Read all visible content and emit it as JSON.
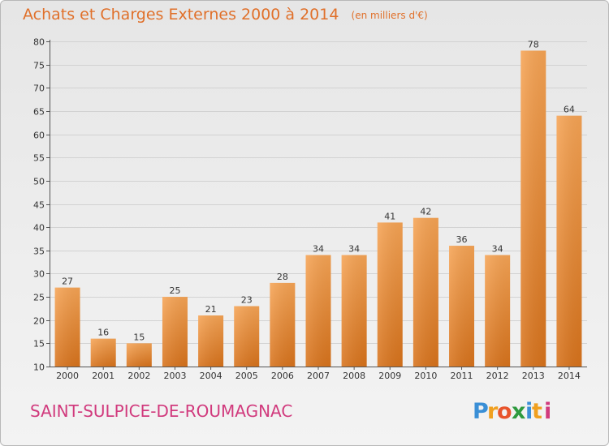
{
  "chart_title": "Achats et Charges Externes 2000 à 2014",
  "chart_unit": "(en milliers d'€)",
  "commune": "SAINT-SULPICE-DE-ROUMAGNAC",
  "logo_text": "Proxiti",
  "colors": {
    "title": "#e0702a",
    "commune": "#d13a7d",
    "bar_light": "#f6a455",
    "bar_dark": "#d8731c"
  },
  "chart_data": {
    "type": "bar",
    "title": "Achats et Charges Externes 2000 à 2014",
    "subtitle": "(en milliers d'€)",
    "categories": [
      "2000",
      "2001",
      "2002",
      "2003",
      "2004",
      "2005",
      "2006",
      "2007",
      "2008",
      "2009",
      "2010",
      "2011",
      "2012",
      "2013",
      "2014"
    ],
    "values": [
      27,
      16,
      15,
      25,
      21,
      23,
      28,
      34,
      34,
      41,
      42,
      36,
      34,
      78,
      64
    ],
    "ylim": [
      10,
      80
    ],
    "yticks": [
      10,
      15,
      20,
      25,
      30,
      35,
      40,
      45,
      50,
      55,
      60,
      65,
      70,
      75,
      80
    ],
    "grid": true,
    "data_labels": true
  }
}
